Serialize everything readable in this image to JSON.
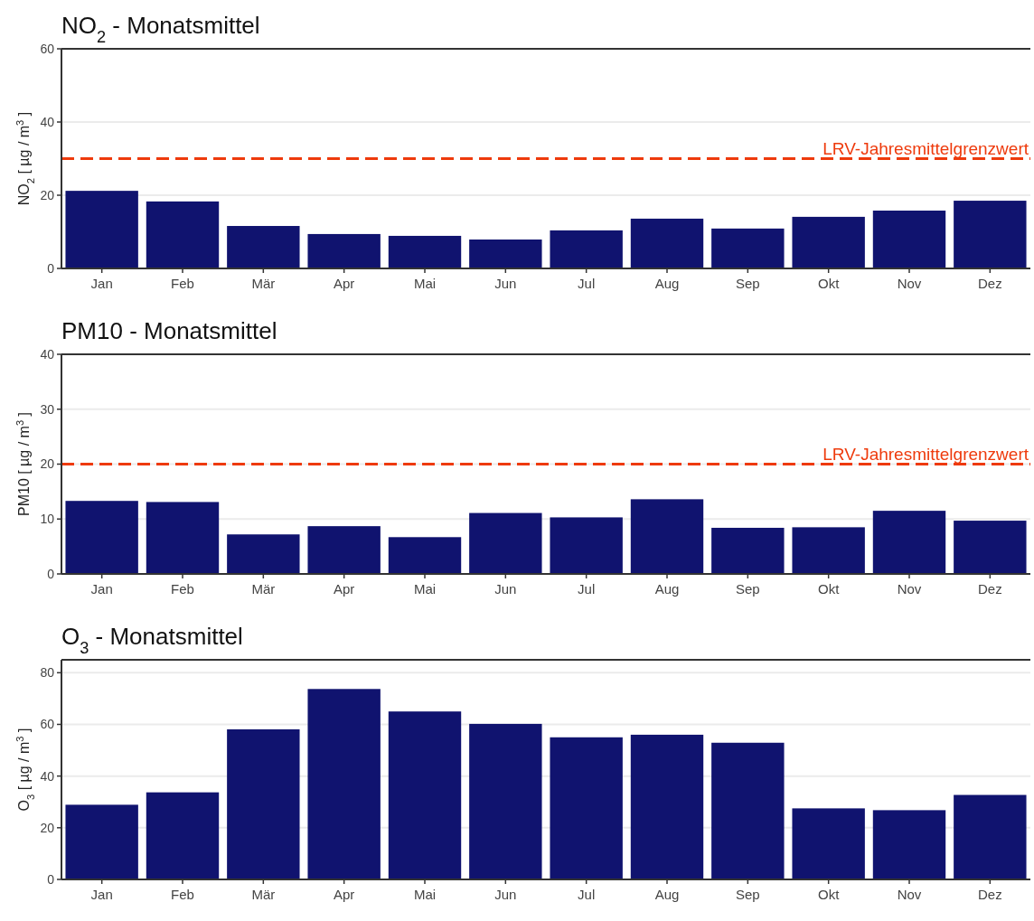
{
  "chart_data": [
    {
      "type": "bar",
      "title": "NO$_{2}$ - Monatsmittel",
      "ylabel": "NO$_{2}$ [ µg / m$^{3}$ ]",
      "categories": [
        "Jan",
        "Feb",
        "Mär",
        "Apr",
        "Mai",
        "Jun",
        "Jul",
        "Aug",
        "Sep",
        "Okt",
        "Nov",
        "Dez"
      ],
      "values": [
        21.2,
        18.3,
        11.6,
        9.4,
        8.9,
        7.9,
        10.4,
        13.6,
        10.9,
        14.1,
        15.8,
        18.5
      ],
      "color": "#10136f",
      "ylim": [
        0,
        60
      ],
      "yticks": [
        0,
        20,
        40,
        60
      ],
      "grid": "y",
      "ref_lines": [
        {
          "axis": "y",
          "value": 30,
          "label": "LRV-Jahresmittelgrenzwert",
          "color": "#ee3a0c",
          "line_style": "dashed"
        }
      ]
    },
    {
      "type": "bar",
      "title": "PM10 - Monatsmittel",
      "ylabel": "PM10 [ µg / m$^{3}$ ]",
      "categories": [
        "Jan",
        "Feb",
        "Mär",
        "Apr",
        "Mai",
        "Jun",
        "Jul",
        "Aug",
        "Sep",
        "Okt",
        "Nov",
        "Dez"
      ],
      "values": [
        13.3,
        13.1,
        7.2,
        8.7,
        6.7,
        11.1,
        10.3,
        13.6,
        8.4,
        8.5,
        11.5,
        9.7
      ],
      "color": "#10136f",
      "ylim": [
        0,
        40
      ],
      "yticks": [
        0,
        10,
        20,
        30,
        40
      ],
      "grid": "y",
      "ref_lines": [
        {
          "axis": "y",
          "value": 20,
          "label": "LRV-Jahresmittelgrenzwert",
          "color": "#ee3a0c",
          "line_style": "dashed"
        }
      ]
    },
    {
      "type": "bar",
      "title": "O$_{3}$ - Monatsmittel",
      "ylabel": "O$_{3}$ [ µg / m$^{3}$ ]",
      "categories": [
        "Jan",
        "Feb",
        "Mär",
        "Apr",
        "Mai",
        "Jun",
        "Jul",
        "Aug",
        "Sep",
        "Okt",
        "Nov",
        "Dez"
      ],
      "values": [
        28.9,
        33.7,
        58.1,
        73.7,
        65.0,
        60.2,
        55.0,
        56.0,
        52.9,
        27.5,
        26.8,
        32.7
      ],
      "color": "#10136f",
      "ylim": [
        0,
        85
      ],
      "yticks": [
        0,
        20,
        40,
        60,
        80
      ],
      "grid": "y"
    }
  ]
}
